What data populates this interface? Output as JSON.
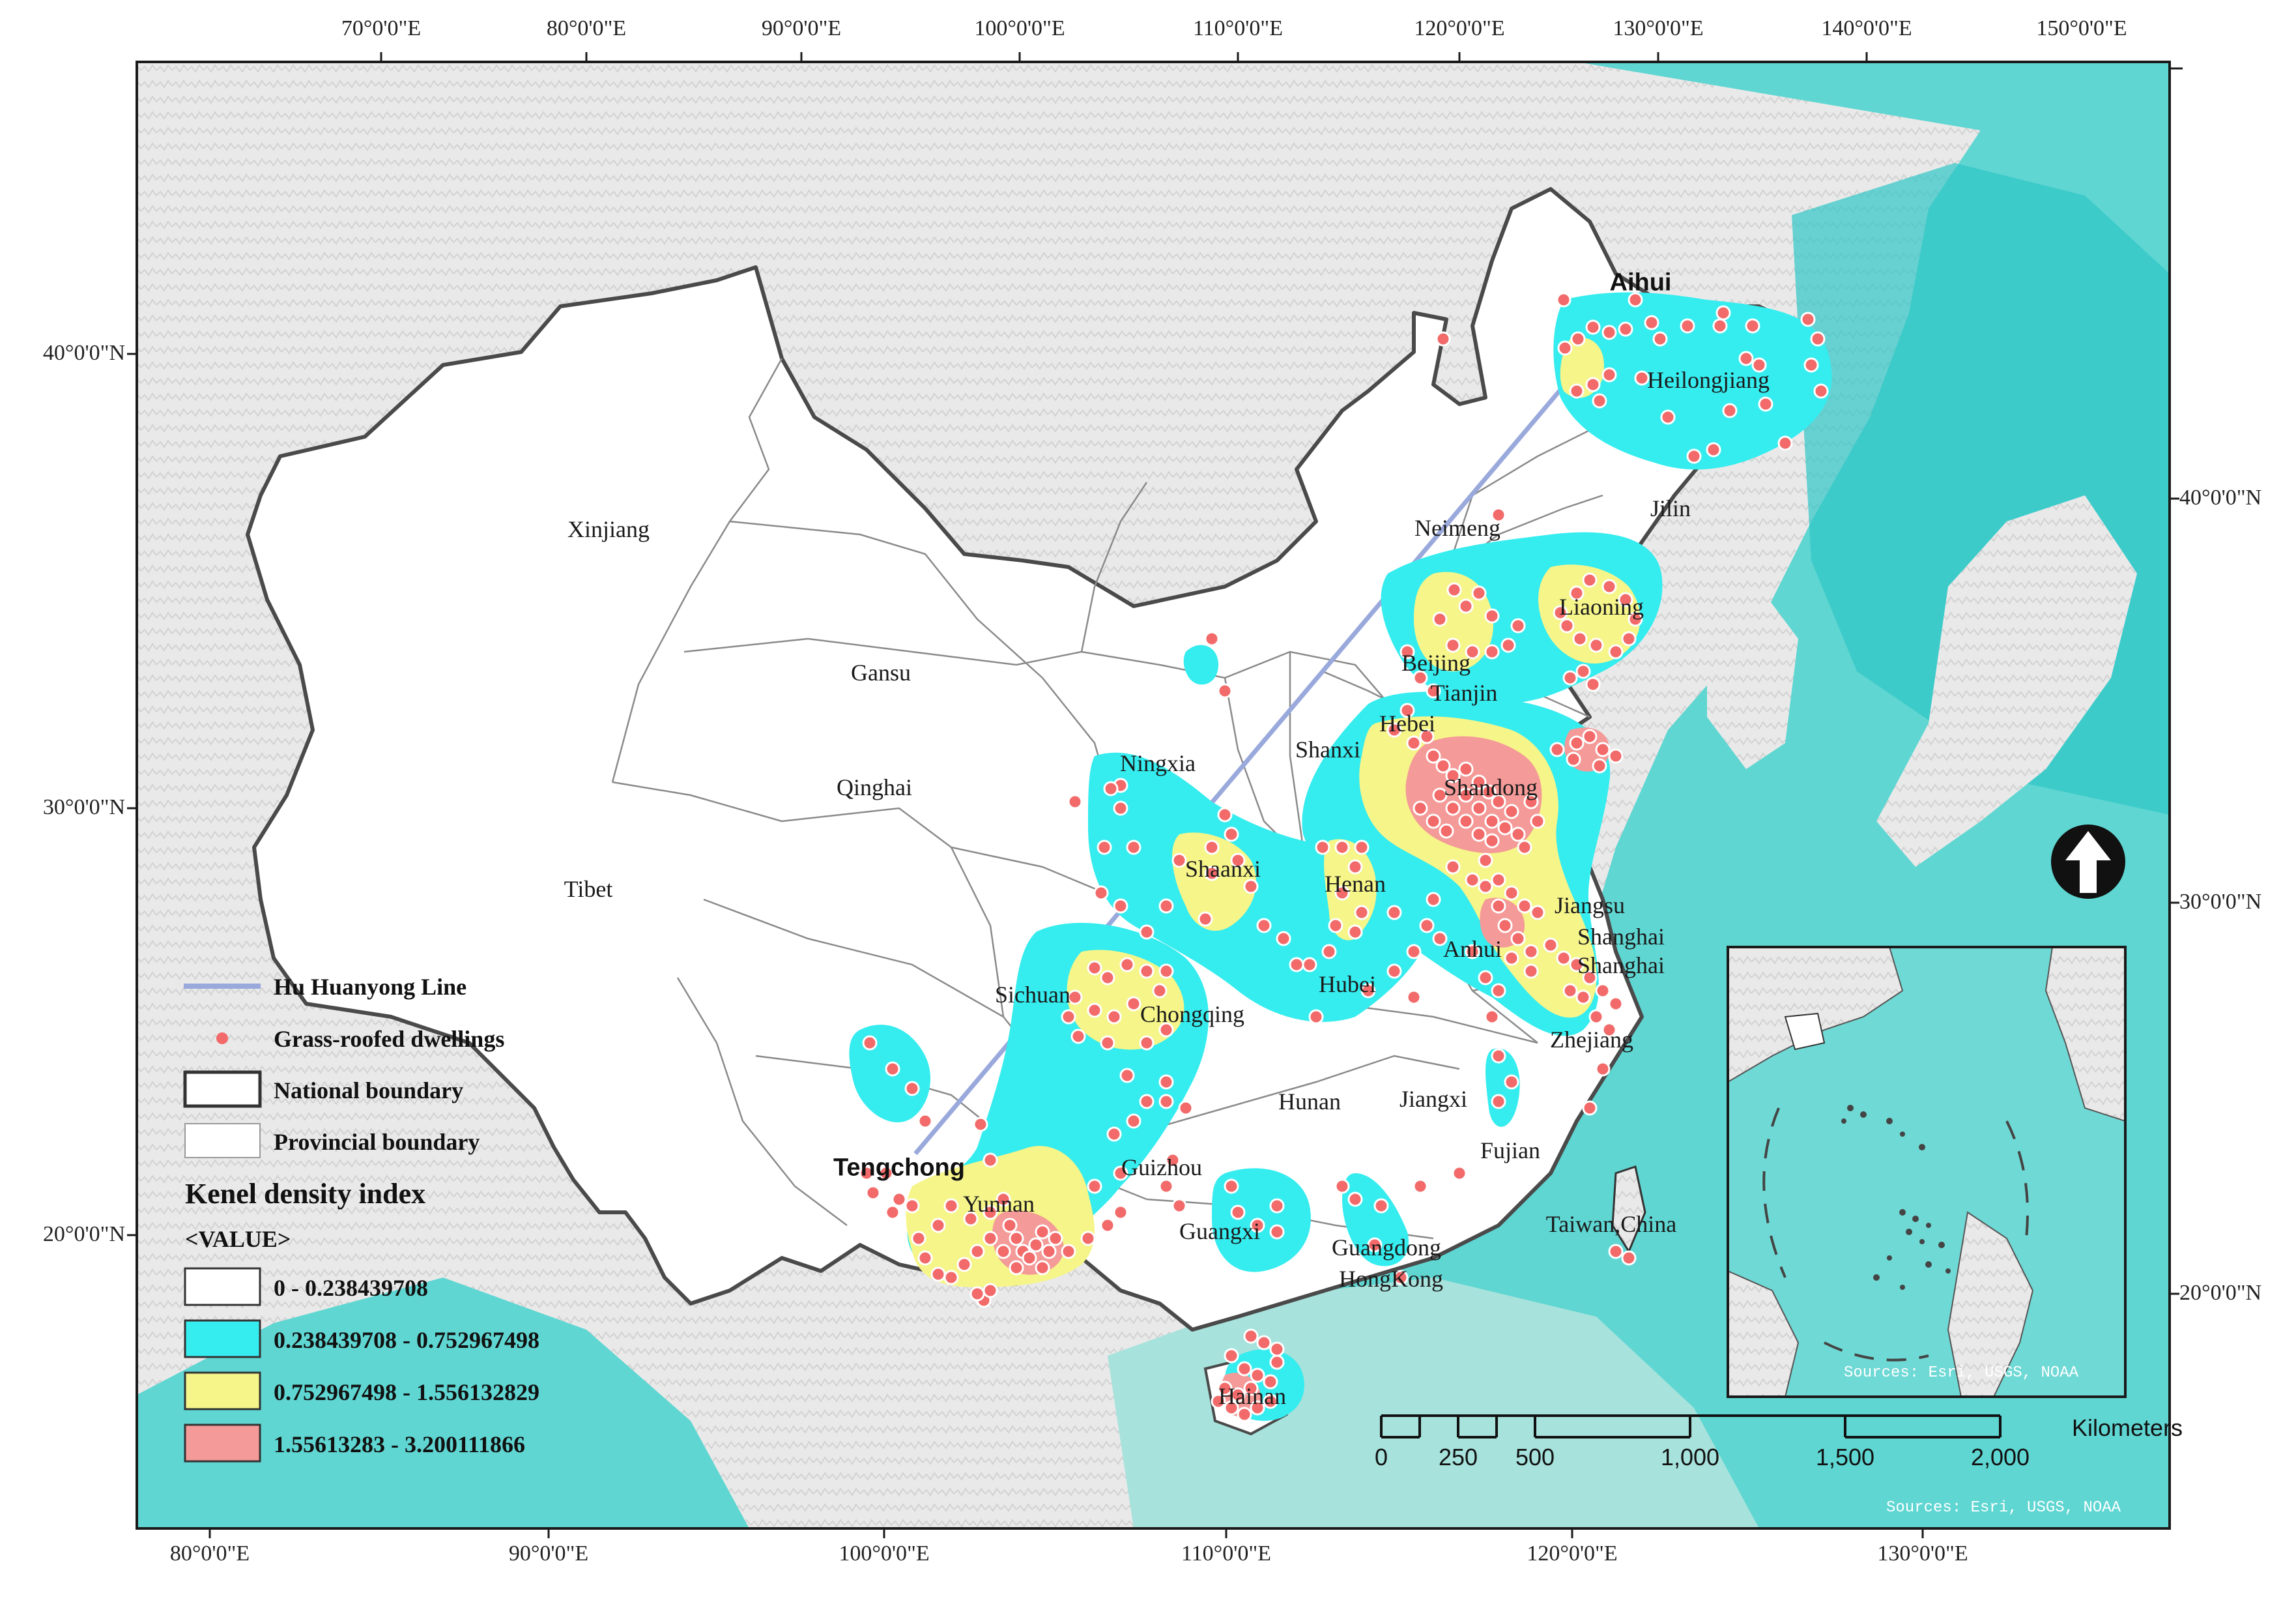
{
  "map": {
    "top_ticks": [
      "70°0'0\"E",
      "80°0'0\"E",
      "90°0'0\"E",
      "100°0'0\"E",
      "110°0'0\"E",
      "120°0'0\"E",
      "130°0'0\"E",
      "140°0'0\"E",
      "150°0'0\"E"
    ],
    "bottom_ticks": [
      "80°0'0\"E",
      "90°0'0\"E",
      "100°0'0\"E",
      "110°0'0\"E",
      "120°0'0\"E",
      "130°0'0\"E"
    ],
    "left_ticks": [
      "40°0'0\"N",
      "30°0'0\"N",
      "20°0'0\"N"
    ],
    "right_ticks": [
      "40°0'0\"N",
      "30°0'0\"N",
      "20°0'0\"N"
    ],
    "provinces": {
      "xinjiang": "Xinjiang",
      "gansu": "Gansu",
      "qinghai": "Qinghai",
      "tibet": "Tibet",
      "ningxia": "Ningxia",
      "shanxi": "Shanxi",
      "shaanxi": "Shaanxi",
      "henan": "Henan",
      "sichuan": "Sichuan",
      "chongqing": "Chongqing",
      "hubei": "Hubei",
      "anhui": "Anhui",
      "jiangsu": "Jiangsu",
      "shanghai1": "Shanghai",
      "shanghai2": "Shanghai",
      "zhejiang": "Zhejiang",
      "hunan": "Hunan",
      "jiangxi": "Jiangxi",
      "fujian": "Fujian",
      "taiwan": "Taiwan,China",
      "guizhou": "Guizhou",
      "yunnan": "Yunnan",
      "guangxi": "Guangxi",
      "guangdong": "Guangdong",
      "hongkong": "HongKong",
      "hainan": "Hainan",
      "shandong": "Shandong",
      "hebei": "Hebei",
      "beijing": "Beijing",
      "tianjin": "Tianjin",
      "liaoning": "Liaoning",
      "jilin": "Jilin",
      "neimeng": "Neimeng",
      "heilongjiang": "Heilongjiang"
    },
    "cities": {
      "aihui": "Aihui",
      "tengchong": "Tengchong"
    }
  },
  "legend": {
    "hu_line": "Hu Huanyong Line",
    "dwellings": "Grass-roofed dwellings",
    "national": "National boundary",
    "provincial": "Provincial boundary",
    "density_title": "Kenel density index",
    "value_header": "<VALUE>",
    "classes": [
      {
        "label": "0 - 0.238439708",
        "color": "#ffffff"
      },
      {
        "label": "0.238439708 - 0.752967498",
        "color": "#35ecef"
      },
      {
        "label": "0.752967498 - 1.556132829",
        "color": "#f6f58a"
      },
      {
        "label": "1.55613283 - 3.200111866",
        "color": "#f49a98"
      }
    ]
  },
  "scale": {
    "labels": [
      "0",
      "250",
      "500",
      "1,000",
      "1,500",
      "2,000"
    ],
    "unit": "Kilometers"
  },
  "sources": {
    "inset": "Sources: Esri, USGS, NOAA",
    "main": "Sources: Esri, USGS, NOAA"
  },
  "colors": {
    "sea": "#5fd6d2",
    "sea_deep": "#24c9c9",
    "land_relief": "#e6e6e6",
    "china": "#ffffff",
    "density_low": "#35ecef",
    "density_mid": "#f6f58a",
    "density_high": "#f49a98",
    "dwelling": "#f26a6a",
    "hu_line": "#9aa9dc"
  }
}
